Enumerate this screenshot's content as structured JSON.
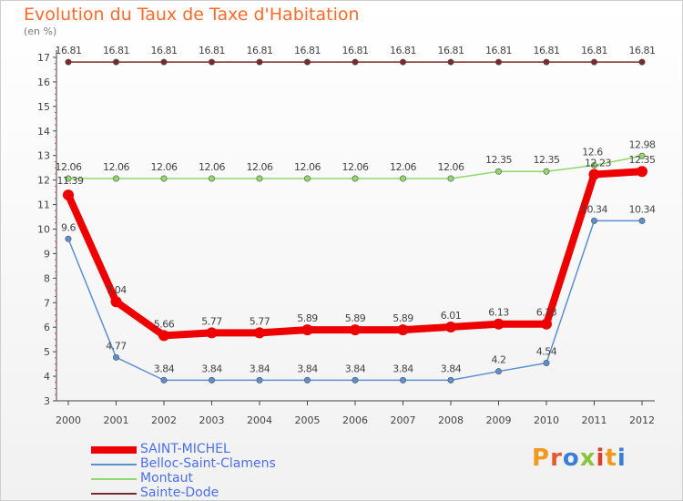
{
  "chart_data": {
    "type": "line",
    "title": "Evolution du Taux de Taxe d'Habitation",
    "ylabel": "(en %)",
    "categories": [
      "2000",
      "2001",
      "2002",
      "2003",
      "2004",
      "2005",
      "2006",
      "2007",
      "2008",
      "2009",
      "2010",
      "2011",
      "2012"
    ],
    "y_ticks": [
      "3",
      "4",
      "5",
      "6",
      "7",
      "8",
      "9",
      "10",
      "11",
      "12",
      "13",
      "14",
      "15",
      "16",
      "17"
    ],
    "ylim": [
      3,
      17
    ],
    "grid": false,
    "legend_position": "bottom-left",
    "series": [
      {
        "name": "SAINT-MICHEL",
        "color": "#ee0000",
        "values": [
          11.39,
          7.04,
          5.66,
          5.77,
          5.77,
          5.89,
          5.89,
          5.89,
          6.01,
          6.13,
          6.13,
          12.23,
          12.35
        ],
        "labels": [
          "11.39",
          "7.04",
          "5.66",
          "5.77",
          "5.77",
          "5.89",
          "5.89",
          "5.89",
          "6.01",
          "6.13",
          "6.13",
          "12.23",
          "12.35"
        ]
      },
      {
        "name": "Belloc-Saint-Clamens",
        "color": "#5b8fd0",
        "values": [
          9.6,
          4.77,
          3.84,
          3.84,
          3.84,
          3.84,
          3.84,
          3.84,
          3.84,
          4.2,
          4.54,
          10.34,
          10.34
        ],
        "labels": [
          "9.6",
          "4.77",
          "3.84",
          "3.84",
          "3.84",
          "3.84",
          "3.84",
          "3.84",
          "3.84",
          "4.2",
          "4.54",
          "10.34",
          "10.34"
        ]
      },
      {
        "name": "Montaut",
        "color": "#8fd86a",
        "values": [
          12.06,
          12.06,
          12.06,
          12.06,
          12.06,
          12.06,
          12.06,
          12.06,
          12.06,
          12.35,
          12.35,
          12.6,
          12.98
        ],
        "labels": [
          "12.06",
          "12.06",
          "12.06",
          "12.06",
          "12.06",
          "12.06",
          "12.06",
          "12.06",
          "12.06",
          "12.35",
          "12.35",
          "12.6",
          "12.98"
        ]
      },
      {
        "name": "Sainte-Dode",
        "color": "#7a2a2a",
        "values": [
          16.81,
          16.81,
          16.81,
          16.81,
          16.81,
          16.81,
          16.81,
          16.81,
          16.81,
          16.81,
          16.81,
          16.81,
          16.81
        ],
        "labels": [
          "16.81",
          "16.81",
          "16.81",
          "16.81",
          "16.81",
          "16.81",
          "16.81",
          "16.81",
          "16.81",
          "16.81",
          "16.81",
          "16.81",
          "16.81"
        ]
      }
    ]
  },
  "legend": {
    "items": [
      {
        "label": "SAINT-MICHEL",
        "color": "#ee0000"
      },
      {
        "label": "Belloc-Saint-Clamens",
        "color": "#5b8fd0"
      },
      {
        "label": "Montaut",
        "color": "#8fd86a"
      },
      {
        "label": "Sainte-Dode",
        "color": "#7a2a2a"
      }
    ]
  },
  "logo": {
    "text": "Proxiti"
  }
}
